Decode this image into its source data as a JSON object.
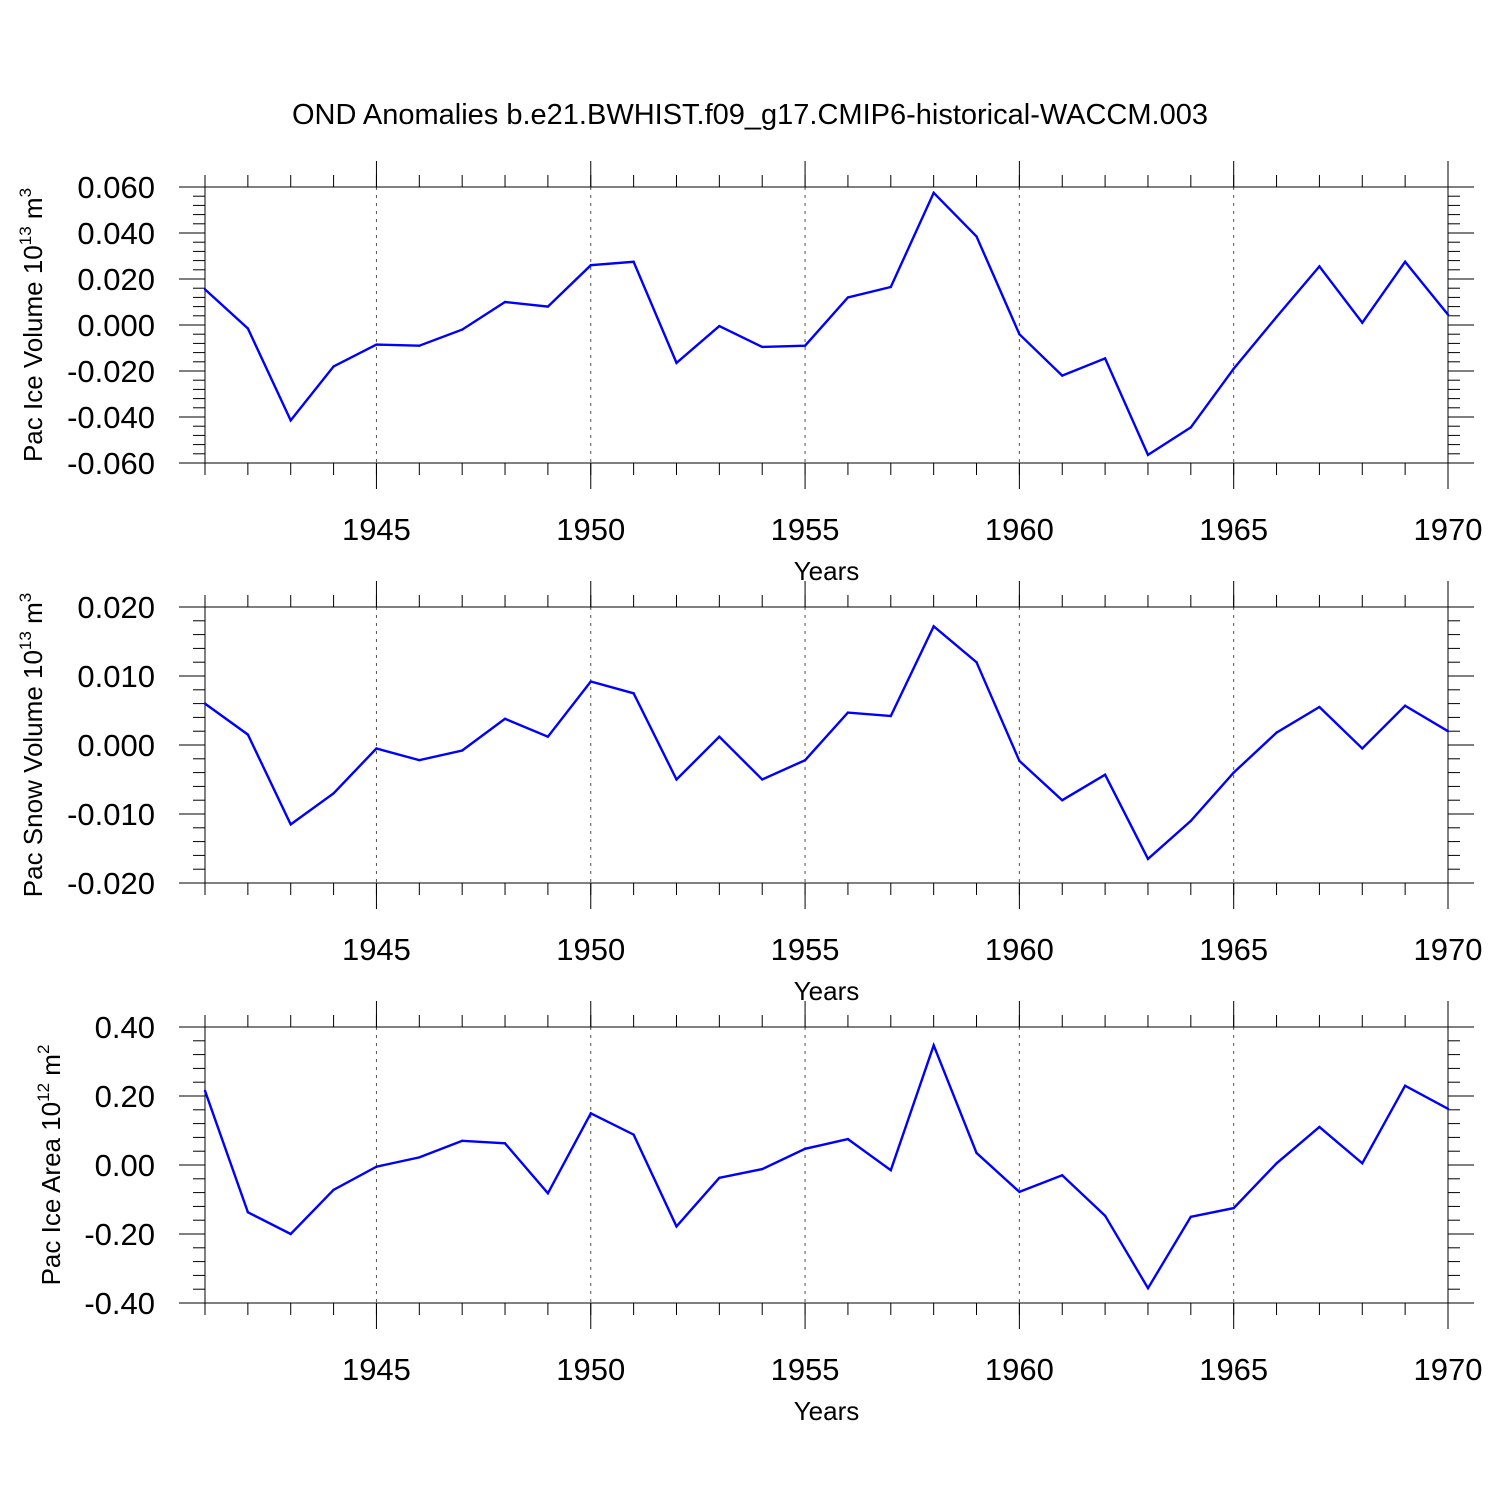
{
  "title": "OND Anomalies b.e21.BWHIST.f09_g17.CMIP6-historical-WACCM.003",
  "colors": {
    "line": "#0000ff",
    "axis": "#000000",
    "grid": "#555555"
  },
  "chart_data": [
    {
      "type": "line",
      "ylabel": {
        "text": "Pac Ice Volume 10",
        "exp1": "13",
        "unit": " m",
        "exp2": "3"
      },
      "xlabel": "Years",
      "xlim": [
        1941,
        1970
      ],
      "ylim": [
        -0.06,
        0.06
      ],
      "yticks": [
        -0.06,
        -0.04,
        -0.02,
        0.0,
        0.02,
        0.04,
        0.06
      ],
      "ytick_labels": [
        "-0.060",
        "-0.040",
        "-0.020",
        "0.000",
        "0.020",
        "0.040",
        "0.060"
      ],
      "xticks": [
        1945,
        1950,
        1955,
        1960,
        1965,
        1970
      ],
      "xtick_labels": [
        "1945",
        "1950",
        "1955",
        "1960",
        "1965",
        "1970"
      ],
      "x": [
        1941,
        1942,
        1943,
        1944,
        1945,
        1946,
        1947,
        1948,
        1949,
        1950,
        1951,
        1952,
        1953,
        1954,
        1955,
        1956,
        1957,
        1958,
        1959,
        1960,
        1961,
        1962,
        1963,
        1964,
        1965,
        1966,
        1967,
        1968,
        1969,
        1970
      ],
      "series": [
        {
          "name": "Pac Ice Volume",
          "values": [
            0.0155,
            -0.0015,
            -0.0415,
            -0.018,
            -0.0085,
            -0.009,
            -0.002,
            0.01,
            0.008,
            0.026,
            0.0275,
            -0.0165,
            -0.0005,
            -0.0095,
            -0.009,
            0.012,
            0.0165,
            0.0575,
            0.0385,
            -0.004,
            -0.022,
            -0.0145,
            -0.0565,
            -0.0445,
            -0.019,
            0.0035,
            0.0255,
            0.001,
            0.0275,
            0.0045
          ]
        }
      ]
    },
    {
      "type": "line",
      "ylabel": {
        "text": "Pac Snow Volume 10",
        "exp1": "13",
        "unit": " m",
        "exp2": "3"
      },
      "xlabel": "Years",
      "xlim": [
        1941,
        1970
      ],
      "ylim": [
        -0.02,
        0.02
      ],
      "yticks": [
        -0.02,
        -0.01,
        0.0,
        0.01,
        0.02
      ],
      "ytick_labels": [
        "-0.020",
        "-0.010",
        "0.000",
        "0.010",
        "0.020"
      ],
      "xticks": [
        1945,
        1950,
        1955,
        1960,
        1965,
        1970
      ],
      "xtick_labels": [
        "1945",
        "1950",
        "1955",
        "1960",
        "1965",
        "1970"
      ],
      "x": [
        1941,
        1942,
        1943,
        1944,
        1945,
        1946,
        1947,
        1948,
        1949,
        1950,
        1951,
        1952,
        1953,
        1954,
        1955,
        1956,
        1957,
        1958,
        1959,
        1960,
        1961,
        1962,
        1963,
        1964,
        1965,
        1966,
        1967,
        1968,
        1969,
        1970
      ],
      "series": [
        {
          "name": "Pac Snow Volume",
          "values": [
            0.006,
            0.0015,
            -0.0115,
            -0.007,
            -0.0005,
            -0.0022,
            -0.0008,
            0.0038,
            0.0012,
            0.0092,
            0.0075,
            -0.005,
            0.0012,
            -0.005,
            -0.0022,
            0.0047,
            0.0042,
            0.0172,
            0.012,
            -0.0023,
            -0.008,
            -0.0043,
            -0.0165,
            -0.011,
            -0.004,
            0.0018,
            0.0055,
            -0.0005,
            0.0057,
            0.002
          ]
        }
      ]
    },
    {
      "type": "line",
      "ylabel": {
        "text": "Pac Ice Area 10",
        "exp1": "12",
        "unit": " m",
        "exp2": "2"
      },
      "xlabel": "Years",
      "xlim": [
        1941,
        1970
      ],
      "ylim": [
        -0.4,
        0.4
      ],
      "yticks": [
        -0.4,
        -0.2,
        0.0,
        0.2,
        0.4
      ],
      "ytick_labels": [
        "-0.40",
        "-0.20",
        "0.00",
        "0.20",
        "0.40"
      ],
      "xticks": [
        1945,
        1950,
        1955,
        1960,
        1965,
        1970
      ],
      "xtick_labels": [
        "1945",
        "1950",
        "1955",
        "1960",
        "1965",
        "1970"
      ],
      "x": [
        1941,
        1942,
        1943,
        1944,
        1945,
        1946,
        1947,
        1948,
        1949,
        1950,
        1951,
        1952,
        1953,
        1954,
        1955,
        1956,
        1957,
        1958,
        1959,
        1960,
        1961,
        1962,
        1963,
        1964,
        1965,
        1966,
        1967,
        1968,
        1969,
        1970
      ],
      "series": [
        {
          "name": "Pac Ice Area",
          "values": [
            0.215,
            -0.137,
            -0.2,
            -0.072,
            -0.005,
            0.022,
            0.07,
            0.063,
            -0.082,
            0.15,
            0.088,
            -0.178,
            -0.037,
            -0.012,
            0.047,
            0.075,
            -0.015,
            0.347,
            0.035,
            -0.078,
            -0.03,
            -0.147,
            -0.357,
            -0.15,
            -0.125,
            0.005,
            0.11,
            0.005,
            0.23,
            0.163
          ]
        }
      ]
    }
  ]
}
